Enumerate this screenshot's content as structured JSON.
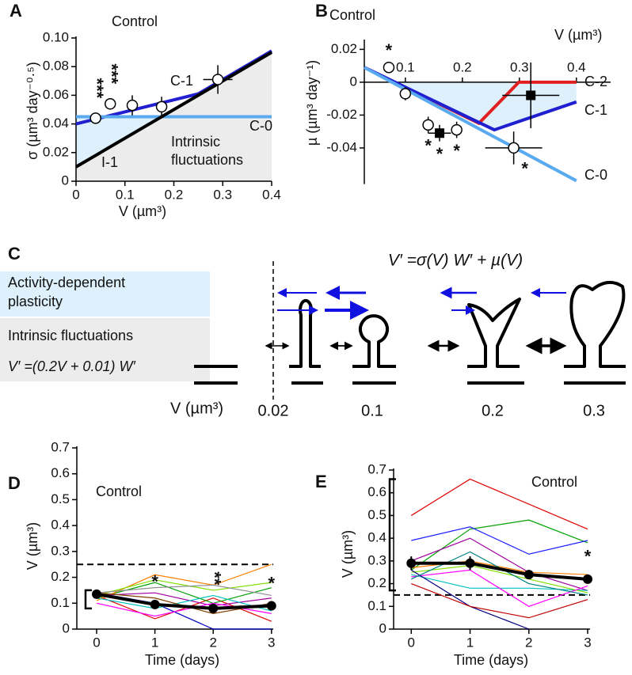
{
  "chart_data": [
    {
      "panel": "A",
      "type": "line",
      "title": "Control",
      "xlabel": "V (µm³)",
      "ylabel": "σ (µm³ day⁻⁰·⁵)",
      "xlim": [
        0,
        0.4
      ],
      "ylim": [
        0,
        0.1
      ],
      "xticks": [
        0,
        0.1,
        0.2,
        0.3,
        0.4
      ],
      "yticks": [
        0,
        0.02,
        0.04,
        0.06,
        0.08,
        {
          "value": 0.1,
          "label": "0.10"
        }
      ],
      "series": [
        {
          "name": "C-1",
          "color": "#2020d0",
          "x": [
            0,
            0.25,
            0.4
          ],
          "values": [
            0.04,
            0.061,
            0.091
          ]
        },
        {
          "name": "C-0",
          "color": "#5aaaf0",
          "x": [
            0,
            0.4
          ],
          "values": [
            0.045,
            0.045
          ]
        },
        {
          "name": "I-1",
          "color": "#000000",
          "x": [
            0,
            0.4
          ],
          "values": [
            0.01,
            0.09
          ]
        }
      ],
      "points": {
        "x": [
          0.04,
          0.07,
          0.115,
          0.175,
          0.29
        ],
        "y": [
          0.044,
          0.054,
          0.053,
          0.052,
          0.071
        ],
        "xerr": [
          0,
          0,
          0,
          0,
          0.03
        ],
        "yerr": [
          0,
          0,
          0.007,
          0.007,
          0.01
        ],
        "filled": [
          false,
          false,
          false,
          false,
          false
        ],
        "labels": [
          "***",
          "***",
          null,
          null,
          null
        ]
      },
      "annotation": [
        "Intrinsic",
        "fluctuations"
      ]
    },
    {
      "panel": "B",
      "type": "line",
      "title": "Control",
      "xlabel": "V (µm³)",
      "ylabel": "µ (µm³ day⁻¹)",
      "xaxis_at_zero": true,
      "xlim": [
        0.028,
        0.46
      ],
      "ylim": [
        -0.062,
        0.025
      ],
      "xticks": [
        0.1,
        0.2,
        0.3,
        0.4
      ],
      "yticks": [
        0.02,
        0,
        -0.02,
        -0.04
      ],
      "series": [
        {
          "name": "C-2",
          "color": "#e02020",
          "x": [
            0.028,
            0.229,
            0.299,
            0.4
          ],
          "values": [
            0.009,
            -0.025,
            0,
            0
          ]
        },
        {
          "name": "C-1",
          "color": "#2020d0",
          "x": [
            0.028,
            0.256,
            0.4
          ],
          "values": [
            0.009,
            -0.029,
            -0.012
          ]
        },
        {
          "name": "C-0",
          "color": "#5aaaf0",
          "x": [
            0.028,
            0.4
          ],
          "values": [
            0.009,
            -0.06
          ]
        }
      ],
      "points": {
        "x": [
          0.071,
          0.1,
          0.14,
          0.16,
          0.19,
          0.32,
          0.29
        ],
        "y": [
          0.009,
          -0.007,
          -0.026,
          -0.031,
          -0.029,
          -0.008,
          -0.04
        ],
        "xerr": [
          0,
          0,
          0,
          0.02,
          0,
          0.05,
          0.05
        ],
        "yerr": [
          0,
          0.004,
          0.005,
          0.005,
          0.005,
          0.02,
          0.01
        ],
        "filled": [
          false,
          false,
          false,
          true,
          false,
          true,
          false
        ],
        "labels": [
          "*",
          null,
          "*",
          "*",
          "*",
          null,
          "*"
        ]
      }
    },
    {
      "panel": "D",
      "type": "line",
      "title": "Control",
      "xlabel": "Time (days)",
      "ylabel": "V (µm³)",
      "xlim": [
        -0.34,
        3.03
      ],
      "ylim": [
        0,
        0.7
      ],
      "xticks": [
        0,
        1,
        2,
        3
      ],
      "yticks": [
        0,
        0.1,
        0.2,
        0.3,
        0.4,
        0.5,
        0.6,
        0.7
      ],
      "x": [
        0,
        1,
        2,
        3
      ],
      "hline": 0.25,
      "bracket": [
        0.08,
        0.15
      ],
      "series": [
        {
          "color": "#e00000",
          "values": [
            0.13,
            0.04,
            0.12,
            0.03
          ]
        },
        {
          "color": "#00a000",
          "values": [
            0.12,
            0.18,
            0.1,
            0.16
          ]
        },
        {
          "color": "#0000c0",
          "values": [
            0.14,
            0.1,
            0,
            0
          ]
        },
        {
          "color": "#ff8000",
          "values": [
            0.11,
            0.21,
            0.17,
            0.25
          ]
        },
        {
          "color": "#a000a0",
          "values": [
            0.13,
            0.14,
            0.09,
            0.12
          ]
        },
        {
          "color": "#00c0c0",
          "values": [
            0.12,
            0.08,
            0.13,
            0.07
          ]
        },
        {
          "color": "#80e000",
          "values": [
            0.13,
            0.19,
            0.15,
            0.18
          ]
        },
        {
          "color": "#909090",
          "values": [
            0.14,
            0.16,
            0.17,
            0.13
          ]
        },
        {
          "color": "#ff00ff",
          "values": [
            0.1,
            0.05,
            0.1,
            0.06
          ]
        },
        {
          "color": "#804000",
          "values": [
            0.14,
            0.12,
            0.06,
            0.1
          ]
        }
      ],
      "mean": {
        "color": "#000000",
        "values": [
          0.135,
          0.095,
          0.08,
          0.09
        ],
        "yerr": [
          0.01,
          0.01,
          0.01,
          0.01
        ],
        "labels": [
          null,
          "*",
          "**",
          "*"
        ]
      }
    },
    {
      "panel": "E",
      "type": "line",
      "title": "Control",
      "xlabel": "Time (days)",
      "ylabel": "V (µm³)",
      "xlim": [
        -0.3,
        3.04
      ],
      "ylim": [
        0,
        0.7
      ],
      "xticks": [
        0,
        1,
        2,
        3
      ],
      "yticks": [
        0,
        0.1,
        0.2,
        0.3,
        0.4,
        0.5,
        0.6,
        0.7
      ],
      "x": [
        0,
        1,
        2,
        3
      ],
      "hline": 0.15,
      "bracket": [
        0.17,
        0.66
      ],
      "series": [
        {
          "color": "#e00000",
          "values": [
            0.5,
            0.66,
            0.55,
            0.44
          ]
        },
        {
          "color": "#00a000",
          "values": [
            0.26,
            0.44,
            0.48,
            0.38
          ]
        },
        {
          "color": "#2020ff",
          "values": [
            0.39,
            0.45,
            0.33,
            0.39
          ]
        },
        {
          "color": "#ff8000",
          "values": [
            0.27,
            0.3,
            0.25,
            0.24
          ]
        },
        {
          "color": "#a000a0",
          "values": [
            0.3,
            0.4,
            0.25,
            0.17
          ]
        },
        {
          "color": "#00c0c0",
          "values": [
            0.24,
            0.18,
            0.18,
            0.17
          ]
        },
        {
          "color": "#80e000",
          "values": [
            0.25,
            0.28,
            0.22,
            0.16
          ]
        },
        {
          "color": "#ff00ff",
          "values": [
            0.23,
            0.26,
            0.1,
            0.19
          ]
        },
        {
          "color": "#000080",
          "values": [
            0.26,
            0.1,
            0,
            null
          ]
        },
        {
          "color": "#c00000",
          "values": [
            0.2,
            0.1,
            0.05,
            0.13
          ]
        },
        {
          "color": "#008080",
          "values": [
            0.22,
            0.34,
            0.2,
            0.15
          ]
        }
      ],
      "mean": {
        "color": "#000000",
        "values": [
          0.29,
          0.29,
          0.24,
          0.22
        ],
        "yerr": [
          0.03,
          0.03,
          0.02,
          0.02
        ],
        "labels": [
          null,
          null,
          null,
          "*"
        ]
      }
    }
  ],
  "diagram": {
    "panel": "C",
    "equation": "V′ =σ(V) W′ + µ(V)",
    "plasticity": [
      "Activity-dependent",
      "plasticity"
    ],
    "fluctuations": "Intrinsic fluctuations",
    "fluct_equation": "V′ =(0.2V + 0.01) W′",
    "axis_label": "V (µm³)",
    "sizes": [
      "0.02",
      "0.1",
      "0.2",
      "0.3"
    ]
  }
}
